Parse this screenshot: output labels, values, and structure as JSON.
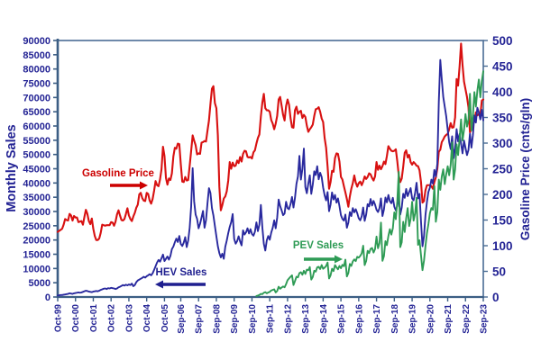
{
  "chart_data": {
    "type": "line",
    "title": "",
    "x_interval": "monthly",
    "x_range": "Oct-1999 to Sep-2023",
    "x_tick_labels": [
      "Oct-99",
      "Oct-00",
      "Oct-01",
      "Oct-02",
      "Oct-03",
      "Oct-04",
      "Oct-05",
      "Sep-06",
      "Sep-07",
      "Sep-08",
      "Sep-09",
      "Sep-10",
      "Sep-11",
      "Sep-12",
      "Sep-13",
      "Sep-14",
      "Sep-15",
      "Sep-16",
      "Sep-17",
      "Sep-18",
      "Sep-19",
      "Sep-20",
      "Sep-21",
      "Sep-22",
      "Sep-23"
    ],
    "x_tick_month_indices": [
      0,
      12,
      24,
      36,
      48,
      60,
      72,
      83,
      95,
      107,
      119,
      131,
      143,
      155,
      167,
      179,
      191,
      203,
      215,
      227,
      239,
      251,
      263,
      275,
      287
    ],
    "total_months": 288,
    "grid": "off",
    "legend": "inline-annotations",
    "colors": {
      "axis_frame": "#4a6c94",
      "axis_text": "#232394",
      "gasoline": "#d81111",
      "hev": "#29299e",
      "pev": "#2e9b55"
    },
    "left_axis": {
      "label": "Monthly Sales",
      "min": 0,
      "max": 90000,
      "step": 5000
    },
    "right_axis": {
      "label": "Gasoline Price (cnts/gln)",
      "min": 0,
      "max": 500,
      "step": 50
    },
    "series": [
      {
        "name": "Gasoline Price",
        "axis": "right",
        "color": "#d81111",
        "start_index": 0,
        "values": [
          127,
          129,
          131,
          133,
          141,
          152,
          150,
          149,
          162,
          159,
          149,
          158,
          155,
          155,
          146,
          147,
          148,
          141,
          156,
          170,
          162,
          148,
          142,
          153,
          133,
          119,
          111,
          111,
          114,
          125,
          141,
          140,
          139,
          140,
          140,
          140,
          146,
          145,
          139,
          147,
          161,
          169,
          159,
          150,
          149,
          152,
          162,
          173,
          159,
          152,
          148,
          157,
          164,
          174,
          180,
          200,
          203,
          193,
          188,
          187,
          203,
          201,
          188,
          182,
          191,
          207,
          226,
          218,
          216,
          229,
          249,
          293,
          275,
          232,
          219,
          231,
          228,
          241,
          274,
          291,
          289,
          299,
          298,
          259,
          225,
          224,
          234,
          227,
          228,
          256,
          285,
          315,
          305,
          296,
          278,
          280,
          279,
          301,
          302,
          304,
          303,
          324,
          344,
          376,
          406,
          411,
          378,
          368,
          315,
          215,
          169,
          179,
          192,
          196,
          206,
          227,
          263,
          250,
          262,
          255,
          256,
          266,
          261,
          273,
          264,
          279,
          285,
          284,
          273,
          272,
          273,
          270,
          282,
          286,
          299,
          310,
          317,
          352,
          379,
          396,
          368,
          364,
          364,
          361,
          345,
          338,
          327,
          338,
          353,
          385,
          390,
          373,
          355,
          344,
          372,
          385,
          375,
          349,
          331,
          330,
          364,
          371,
          357,
          361,
          363,
          349,
          355,
          351,
          334,
          322,
          327,
          331,
          336,
          353,
          366,
          367,
          370,
          361,
          348,
          341,
          310,
          291,
          254,
          211,
          224,
          246,
          244,
          271,
          280,
          279,
          264,
          234,
          229,
          216,
          204,
          191,
          176,
          196,
          211,
          222,
          237,
          223,
          215,
          222,
          225,
          218,
          225,
          235,
          230,
          234,
          241,
          239,
          232,
          227,
          235,
          263,
          248,
          256,
          249,
          255,
          264,
          259,
          275,
          294,
          289,
          285,
          284,
          285,
          288,
          265,
          237,
          224,
          231,
          254,
          281,
          286,
          272,
          277,
          263,
          258,
          263,
          260,
          256,
          255,
          247,
          224,
          184,
          187,
          208,
          218,
          218,
          218,
          216,
          211,
          224,
          233,
          250,
          283,
          287,
          302,
          307,
          313,
          316,
          318,
          327,
          339,
          330,
          331,
          350,
          425,
          412,
          449,
          494,
          452,
          420,
          405,
          390,
          370,
          321,
          327,
          337,
          342,
          360,
          354,
          357,
          354,
          383,
          385
        ]
      },
      {
        "name": "HEV Sales",
        "axis": "left",
        "color": "#29299e",
        "start_index": 0,
        "values": [
          500,
          600,
          700,
          700,
          800,
          900,
          1000,
          1100,
          1300,
          1200,
          1100,
          1300,
          1400,
          1500,
          1600,
          1500,
          1600,
          1800,
          2000,
          2200,
          2100,
          1900,
          1800,
          1700,
          1900,
          2000,
          2100,
          2000,
          2200,
          2500,
          2700,
          2900,
          3000,
          2800,
          3100,
          3000,
          3200,
          3100,
          3000,
          2800,
          3000,
          3400,
          3600,
          3900,
          4200,
          4000,
          4300,
          4100,
          4400,
          4200,
          4700,
          3800,
          4200,
          5200,
          5800,
          6100,
          6400,
          6700,
          7100,
          6800,
          7300,
          7600,
          8000,
          7600,
          8300,
          9500,
          10800,
          12100,
          13000,
          12400,
          13600,
          14900,
          12600,
          13400,
          14200,
          13100,
          14400,
          16800,
          17700,
          19200,
          20500,
          19300,
          21400,
          18600,
          17900,
          19100,
          21000,
          17500,
          19800,
          24300,
          31800,
          45200,
          33600,
          28900,
          27400,
          24100,
          25700,
          27900,
          30200,
          24300,
          26900,
          32800,
          38200,
          36500,
          31200,
          28600,
          24900,
          21300,
          17800,
          15400,
          13900,
          15200,
          13400,
          17600,
          19800,
          22400,
          24600,
          26300,
          29100,
          20400,
          18700,
          19600,
          21300,
          19500,
          18100,
          23400,
          21900,
          22700,
          24100,
          22300,
          23800,
          22100,
          21500,
          22900,
          26200,
          23100,
          25400,
          32300,
          24500,
          18700,
          16300,
          19900,
          21400,
          20100,
          22600,
          24300,
          26900,
          24100,
          27800,
          34200,
          31900,
          30400,
          28700,
          29300,
          33400,
          31200,
          30800,
          32600,
          35100,
          31400,
          34800,
          39700,
          42300,
          49500,
          41200,
          44900,
          52100,
          38600,
          36400,
          39800,
          42700,
          36200,
          39400,
          44100,
          42800,
          45900,
          41300,
          43600,
          42100,
          38400,
          35700,
          33900,
          36800,
          30100,
          32400,
          36700,
          34200,
          35800,
          33100,
          34600,
          31900,
          28700,
          27400,
          26800,
          28900,
          24300,
          26100,
          29800,
          28400,
          31200,
          29700,
          30800,
          29400,
          27600,
          26900,
          28300,
          31400,
          26700,
          28900,
          32600,
          31800,
          34400,
          32100,
          33700,
          32400,
          30600,
          29800,
          31200,
          34600,
          28400,
          30700,
          34900,
          33200,
          35800,
          33600,
          32900,
          34800,
          31700,
          30400,
          31900,
          35200,
          28900,
          31400,
          36200,
          34800,
          37900,
          35400,
          36800,
          38200,
          34600,
          33900,
          36400,
          40100,
          34600,
          36200,
          26400,
          17800,
          21300,
          28700,
          33400,
          36900,
          38400,
          41200,
          39800,
          44600,
          42300,
          46800,
          68400,
          83200,
          76400,
          70200,
          66800,
          63400,
          58700,
          54300,
          51900,
          56400,
          48700,
          52300,
          58900,
          54600,
          57200,
          53800,
          50400,
          54900,
          52300,
          49800,
          51600,
          57300,
          52400,
          56800,
          63700,
          61200,
          66400,
          64800,
          62300,
          65700,
          62000
        ]
      },
      {
        "name": "PEV Sales",
        "axis": "left",
        "color": "#2e9b55",
        "start_index": 134,
        "values": [
          350,
          500,
          700,
          1100,
          1000,
          1500,
          1700,
          1300,
          1600,
          1800,
          2300,
          2500,
          2700,
          1600,
          2100,
          3600,
          2900,
          3300,
          3700,
          3400,
          4500,
          5900,
          6500,
          7100,
          7600,
          4200,
          5600,
          7100,
          6900,
          8400,
          8700,
          7800,
          9200,
          8100,
          9600,
          9400,
          10500,
          6100,
          7000,
          9200,
          8900,
          10400,
          10600,
          9800,
          11200,
          9900,
          10300,
          10900,
          12100,
          6500,
          7600,
          9900,
          9100,
          11200,
          10400,
          9700,
          10900,
          10100,
          11300,
          10800,
          13100,
          7200,
          8400,
          11600,
          10900,
          12500,
          13200,
          12600,
          14100,
          13800,
          14400,
          15300,
          18000,
          11200,
          12600,
          16200,
          15400,
          16900,
          17200,
          15600,
          16800,
          21200,
          17100,
          18900,
          26100,
          12700,
          14300,
          19600,
          18200,
          21400,
          23800,
          21900,
          24100,
          29700,
          27300,
          33600,
          43900,
          17500,
          19200,
          26400,
          22800,
          27600,
          31200,
          24900,
          27400,
          33400,
          26800,
          29300,
          34800,
          18300,
          19900,
          14600,
          9400,
          12700,
          17800,
          22400,
          25600,
          29400,
          31200,
          30600,
          38900,
          26400,
          29800,
          41200,
          37600,
          42300,
          44800,
          39600,
          43100,
          45900,
          42700,
          46400,
          54300,
          41200,
          44700,
          53600,
          49800,
          55400,
          62300,
          54900,
          58600,
          64200,
          59800,
          62400,
          71300,
          58400,
          63700,
          71900,
          66800,
          72400,
          76300,
          70100,
          75800,
          79200
        ]
      }
    ],
    "annotations": [
      {
        "id": "gasoline",
        "text": "Gasoline Price",
        "color": "#cc0000",
        "tx": 131,
        "ty": 196,
        "ax1": 122,
        "ay": 206,
        "ax2": 164,
        "dir": "right"
      },
      {
        "id": "hev",
        "text": "HEV Sales",
        "color": "#1f1f8f",
        "tx": 201,
        "ty": 306,
        "ax1": 228,
        "ay": 316,
        "ax2": 172,
        "dir": "left"
      },
      {
        "id": "pev",
        "text": "PEV Sales",
        "color": "#2e9b55",
        "tx": 353,
        "ty": 276,
        "ax1": 337,
        "ay": 288,
        "ax2": 380,
        "dir": "right"
      }
    ]
  }
}
